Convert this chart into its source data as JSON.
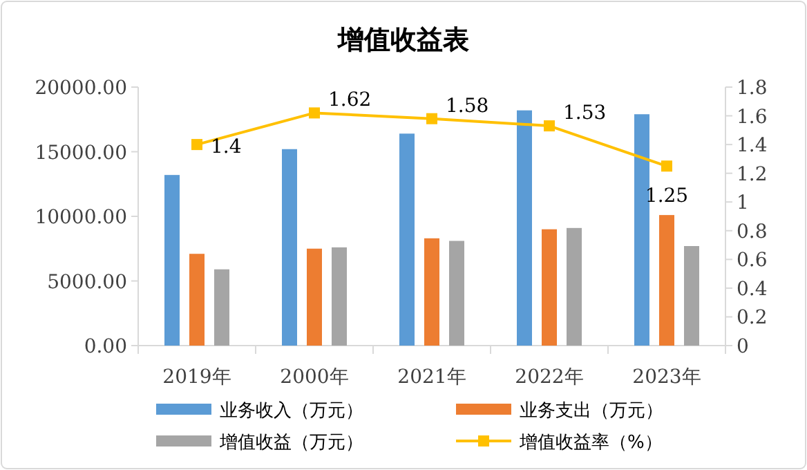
{
  "chart_data": {
    "type": "bar",
    "title": "增值收益表",
    "categories": [
      "2019年",
      "2000年",
      "2021年",
      "2022年",
      "2023年"
    ],
    "series": [
      {
        "name": "业务收入（万元）",
        "color": "#5b9bd5",
        "values": [
          13200,
          15200,
          16400,
          18200,
          17900
        ]
      },
      {
        "name": "业务支出（万元）",
        "color": "#ed7d31",
        "values": [
          7100,
          7500,
          8300,
          9000,
          10100
        ]
      },
      {
        "name": "增值收益（万元）",
        "color": "#a5a5a5",
        "values": [
          5900,
          7600,
          8100,
          9100,
          7700
        ]
      },
      {
        "name": "增值收益率（%）",
        "color": "#ffc000",
        "type": "line",
        "axis": "y2",
        "marker": "square",
        "values": [
          1.4,
          1.62,
          1.58,
          1.53,
          1.25
        ],
        "value_labels": [
          "1.4",
          "1.62",
          "1.58",
          "1.53",
          "1.25"
        ]
      }
    ],
    "ylim": [
      0,
      20000
    ],
    "yticks": [
      {
        "value": 0,
        "label": "0.00"
      },
      {
        "value": 5000,
        "label": "5000.00"
      },
      {
        "value": 10000,
        "label": "10000.00"
      },
      {
        "value": 15000,
        "label": "15000.00"
      },
      {
        "value": 20000,
        "label": "20000.00"
      }
    ],
    "y2lim": [
      0,
      1.8
    ],
    "y2ticks": [
      0,
      0.2,
      0.4,
      0.6,
      0.8,
      1,
      1.2,
      1.4,
      1.6,
      1.8
    ],
    "grid": false,
    "legend": "bottom"
  }
}
